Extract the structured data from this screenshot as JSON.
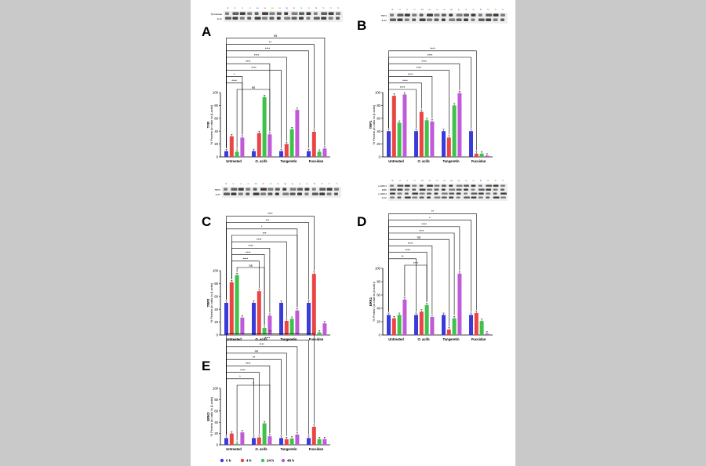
{
  "figure": {
    "colors": [
      "#3b3bdc",
      "#ea4444",
      "#3fc24a",
      "#c05ad8"
    ],
    "legend": [
      "0 h",
      "4 h",
      "24 h",
      "48 h"
    ],
    "groups": [
      "Untreated",
      "O. acifa",
      "Tangeretin",
      "Fucoidan"
    ],
    "blot_lane_labels": [
      "ut",
      "ut",
      "ut",
      "ut",
      "oa",
      "oa",
      "oa",
      "oa",
      "tg",
      "tg",
      "tg",
      "tg",
      "fu",
      "fu",
      "fu",
      "fu"
    ]
  },
  "chart_data": [
    {
      "type": "bar",
      "panel": "A",
      "ylabel_top": "TYR",
      "ylabel": "% Protein (in ratio to β-actin)",
      "categories": [
        "Untreated",
        "O. acifa",
        "Tangeretin",
        "Fucoidan"
      ],
      "ylim": [
        0,
        100
      ],
      "ticks": [
        0,
        20,
        40,
        60,
        80,
        100
      ],
      "blot": [
        "Tyrosinase",
        "β-Ac"
      ],
      "series": [
        {
          "name": "0 h",
          "values": [
            9,
            9,
            9,
            9
          ]
        },
        {
          "name": "4 h",
          "values": [
            32,
            37,
            20,
            39
          ]
        },
        {
          "name": "24 h",
          "values": [
            8,
            93,
            43,
            8
          ]
        },
        {
          "name": "48 h",
          "values": [
            30,
            35,
            73,
            13
          ]
        }
      ],
      "sig": [
        "ns",
        "**",
        "****",
        "****",
        "****",
        "****",
        "*",
        "****",
        "ns"
      ]
    },
    {
      "type": "bar",
      "panel": "B",
      "ylabel_top": "TRP1",
      "ylabel": "% Protein (in ratio to β-actin)",
      "categories": [
        "Untreated",
        "O. acifa",
        "Tangeretin",
        "Fucoidan"
      ],
      "ylim": [
        0,
        100
      ],
      "ticks": [
        0,
        20,
        40,
        60,
        80,
        100
      ],
      "blot": [
        "TRP1",
        "β-Ac"
      ],
      "series": [
        {
          "name": "0 h",
          "values": [
            40,
            40,
            40,
            40
          ]
        },
        {
          "name": "4 h",
          "values": [
            95,
            70,
            30,
            5
          ]
        },
        {
          "name": "24 h",
          "values": [
            53,
            57,
            80,
            5
          ]
        },
        {
          "name": "48 h",
          "values": [
            97,
            55,
            99,
            2
          ]
        }
      ],
      "sig": [
        "****",
        "****",
        "****",
        "****",
        "****",
        "****",
        "****"
      ]
    },
    {
      "type": "bar",
      "panel": "C",
      "ylabel_top": "TRP2",
      "ylabel": "% Protein (in ratio to β-actin)",
      "categories": [
        "Untreated",
        "O. acifa",
        "Tangeretin",
        "Fucoidan"
      ],
      "ylim": [
        0,
        100
      ],
      "ticks": [
        0,
        20,
        40,
        60,
        80,
        100
      ],
      "blot": [
        "TRP2",
        "β-Ac"
      ],
      "series": [
        {
          "name": "0 h",
          "values": [
            50,
            50,
            50,
            50
          ]
        },
        {
          "name": "4 h",
          "values": [
            82,
            68,
            22,
            95
          ]
        },
        {
          "name": "24 h",
          "values": [
            93,
            11,
            25,
            4
          ]
        },
        {
          "name": "48 h",
          "values": [
            27,
            30,
            38,
            18
          ]
        }
      ],
      "sig": [
        "****",
        "***",
        "*",
        "***",
        "****",
        "****",
        "****",
        "****",
        "ns"
      ]
    },
    {
      "type": "bar",
      "panel": "D",
      "ylabel_top": "ERK1",
      "ylabel": "% Protein (in ratio to β-actin)",
      "categories": [
        "Untreated",
        "O. acifa",
        "Tangeretin",
        "Fucoidan"
      ],
      "ylim": [
        0,
        100
      ],
      "ticks": [
        0,
        20,
        40,
        60,
        80,
        100
      ],
      "blot": [
        "p-ERK1",
        "ERK",
        "p-ERK2",
        "β-Ac"
      ],
      "series": [
        {
          "name": "0 h",
          "values": [
            30,
            30,
            30,
            30
          ]
        },
        {
          "name": "4 h",
          "values": [
            25,
            35,
            8,
            33
          ]
        },
        {
          "name": "24 h",
          "values": [
            30,
            45,
            25,
            21
          ]
        },
        {
          "name": "48 h",
          "values": [
            53,
            27,
            92,
            2
          ]
        }
      ],
      "sig": [
        "**",
        "*",
        "****",
        "****",
        "ns",
        "****",
        "****",
        "**",
        "****"
      ]
    },
    {
      "type": "bar",
      "panel": "E",
      "ylabel_top": "ERK2",
      "ylabel": "% Protein (in ratio to β-actin)",
      "categories": [
        "Untreated",
        "O. acifa",
        "Tangeretin",
        "Fucoidan"
      ],
      "ylim": [
        0,
        100
      ],
      "ticks": [
        0,
        20,
        40,
        60,
        80,
        100
      ],
      "blot": [],
      "series": [
        {
          "name": "0 h",
          "values": [
            12,
            12,
            12,
            12
          ]
        },
        {
          "name": "4 h",
          "values": [
            20,
            13,
            10,
            32
          ]
        },
        {
          "name": "24 h",
          "values": [
            2,
            38,
            11,
            10
          ]
        },
        {
          "name": "48 h",
          "values": [
            22,
            15,
            18,
            10
          ]
        }
      ],
      "sig": [
        "**",
        "****",
        "****",
        "ns",
        "**",
        "****",
        "****",
        "*",
        "*"
      ]
    }
  ]
}
